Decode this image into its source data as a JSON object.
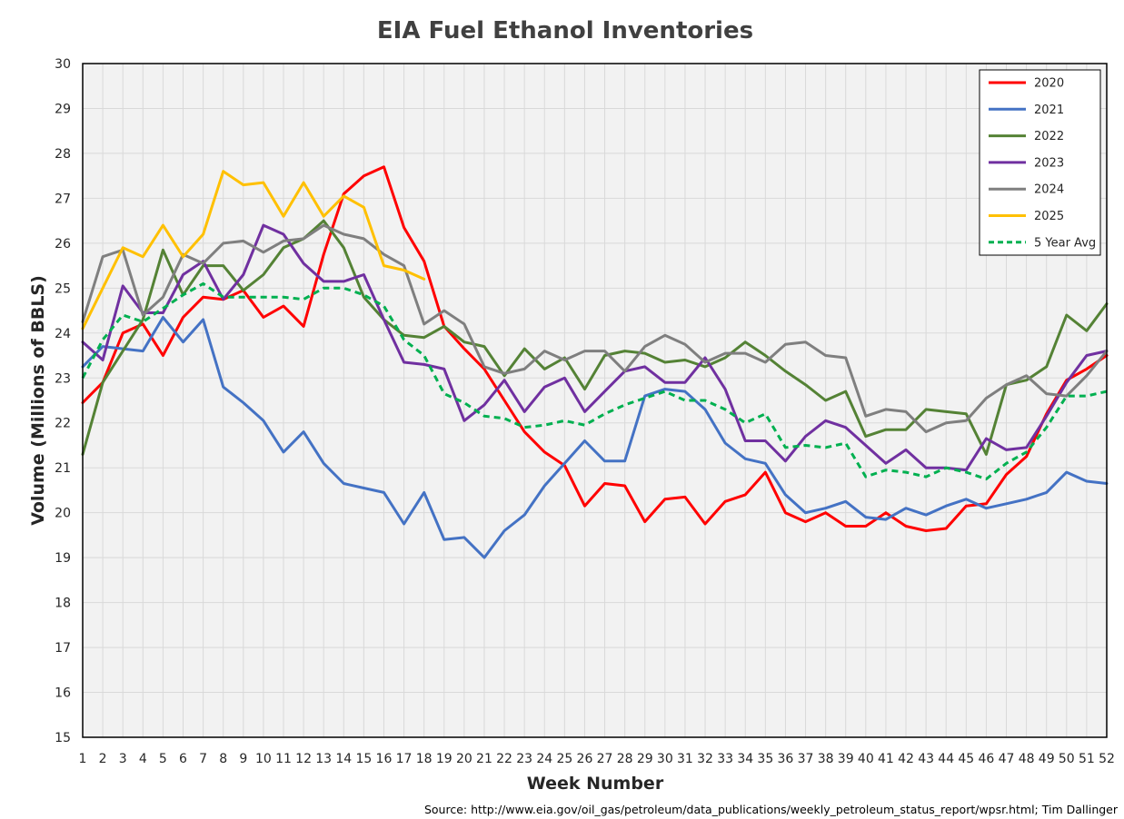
{
  "chart_data": {
    "type": "line",
    "title": "EIA Fuel Ethanol Inventories",
    "xlabel": "Week Number",
    "ylabel": "Volume (Millions of BBLS)",
    "source": "Source: http://www.eia.gov/oil_gas/petroleum/data_publications/weekly_petroleum_status_report/wpsr.html; Tim Dallinger",
    "xlim": [
      1,
      52
    ],
    "ylim": [
      15,
      30
    ],
    "x_ticks": [
      1,
      2,
      3,
      4,
      5,
      6,
      7,
      8,
      9,
      10,
      11,
      12,
      13,
      14,
      15,
      16,
      17,
      18,
      19,
      20,
      21,
      22,
      23,
      24,
      25,
      26,
      27,
      28,
      29,
      30,
      31,
      32,
      33,
      34,
      35,
      36,
      37,
      38,
      39,
      40,
      41,
      42,
      43,
      44,
      45,
      46,
      47,
      48,
      49,
      50,
      51,
      52
    ],
    "y_ticks": [
      15,
      16,
      17,
      18,
      19,
      20,
      21,
      22,
      23,
      24,
      25,
      26,
      27,
      28,
      29,
      30
    ],
    "grid": true,
    "legend_position": "top-right",
    "plot_background": "#f2f2f2",
    "series": [
      {
        "name": "2020",
        "color": "#ff0000",
        "dashed": false,
        "values": [
          22.45,
          22.9,
          24.0,
          24.2,
          23.5,
          24.35,
          24.8,
          24.75,
          24.95,
          24.35,
          24.6,
          24.15,
          25.75,
          27.1,
          27.5,
          27.7,
          26.35,
          25.6,
          24.15,
          23.65,
          23.2,
          22.5,
          21.8,
          21.35,
          21.05,
          20.15,
          20.65,
          20.6,
          19.8,
          20.3,
          20.35,
          19.75,
          20.25,
          20.4,
          20.9,
          20.0,
          19.8,
          20.0,
          19.7,
          19.7,
          20.0,
          19.7,
          19.6,
          19.65,
          20.15,
          20.2,
          20.85,
          21.25,
          22.2,
          22.95,
          23.2,
          23.5
        ]
      },
      {
        "name": "2021",
        "color": "#4472c4",
        "dashed": false,
        "values": [
          23.25,
          23.7,
          23.65,
          23.6,
          24.35,
          23.8,
          24.3,
          22.8,
          22.45,
          22.05,
          21.35,
          21.8,
          21.1,
          20.65,
          20.55,
          20.45,
          19.75,
          20.45,
          19.4,
          19.45,
          19.0,
          19.6,
          19.95,
          20.6,
          21.1,
          21.6,
          21.15,
          21.15,
          22.6,
          22.75,
          22.7,
          22.3,
          21.55,
          21.2,
          21.1,
          20.4,
          20.0,
          20.1,
          20.25,
          19.9,
          19.85,
          20.1,
          19.95,
          20.15,
          20.3,
          20.1,
          20.2,
          20.3,
          20.45,
          20.9,
          20.7,
          20.65
        ]
      },
      {
        "name": "2022",
        "color": "#548235",
        "dashed": false,
        "values": [
          21.3,
          22.9,
          23.6,
          24.3,
          25.85,
          24.85,
          25.5,
          25.5,
          24.95,
          25.3,
          25.9,
          26.1,
          26.5,
          25.9,
          24.8,
          24.3,
          23.95,
          23.9,
          24.15,
          23.8,
          23.7,
          23.05,
          23.65,
          23.2,
          23.45,
          22.75,
          23.5,
          23.6,
          23.55,
          23.35,
          23.4,
          23.25,
          23.45,
          23.8,
          23.5,
          23.15,
          22.85,
          22.5,
          22.7,
          21.7,
          21.85,
          21.85,
          22.3,
          22.25,
          22.2,
          21.3,
          22.85,
          22.95,
          23.25,
          24.4,
          24.05,
          24.65
        ]
      },
      {
        "name": "2023",
        "color": "#7030a0",
        "dashed": false,
        "values": [
          23.8,
          23.4,
          25.05,
          24.45,
          24.45,
          25.3,
          25.6,
          24.75,
          25.3,
          26.4,
          26.2,
          25.55,
          25.15,
          25.15,
          25.3,
          24.3,
          23.35,
          23.3,
          23.2,
          22.05,
          22.4,
          22.95,
          22.25,
          22.8,
          23.0,
          22.25,
          22.7,
          23.15,
          23.25,
          22.9,
          22.9,
          23.45,
          22.75,
          21.6,
          21.6,
          21.15,
          21.7,
          22.05,
          21.9,
          21.5,
          21.1,
          21.4,
          21.0,
          21.0,
          20.95,
          21.65,
          21.4,
          21.45,
          22.15,
          22.9,
          23.5,
          23.6
        ]
      },
      {
        "name": "2024",
        "color": "#7f7f7f",
        "dashed": false,
        "values": [
          24.25,
          25.7,
          25.85,
          24.4,
          24.8,
          25.75,
          25.55,
          26.0,
          26.05,
          25.8,
          26.05,
          26.1,
          26.4,
          26.2,
          26.1,
          25.75,
          25.5,
          24.2,
          24.5,
          24.2,
          23.25,
          23.1,
          23.2,
          23.6,
          23.4,
          23.6,
          23.6,
          23.15,
          23.7,
          23.95,
          23.75,
          23.35,
          23.55,
          23.55,
          23.35,
          23.75,
          23.8,
          23.5,
          23.45,
          22.15,
          22.3,
          22.25,
          21.8,
          22.0,
          22.05,
          22.55,
          22.85,
          23.05,
          22.65,
          22.6,
          23.05,
          23.6
        ]
      },
      {
        "name": "2025",
        "color": "#ffc000",
        "dashed": false,
        "values": [
          24.1,
          25.0,
          25.9,
          25.7,
          26.4,
          25.7,
          26.2,
          27.6,
          27.3,
          27.35,
          26.6,
          27.35,
          26.6,
          27.05,
          26.8,
          25.5,
          25.4,
          25.2
        ]
      },
      {
        "name": "5 Year Avg",
        "color": "#00b050",
        "dashed": true,
        "values": [
          23.0,
          23.85,
          24.4,
          24.25,
          24.55,
          24.85,
          25.1,
          24.8,
          24.8,
          24.8,
          24.8,
          24.75,
          25.0,
          25.0,
          24.85,
          24.6,
          23.85,
          23.5,
          22.65,
          22.45,
          22.15,
          22.1,
          21.9,
          21.95,
          22.05,
          21.95,
          22.2,
          22.4,
          22.55,
          22.7,
          22.5,
          22.5,
          22.3,
          22.0,
          22.2,
          21.45,
          21.5,
          21.45,
          21.55,
          20.8,
          20.95,
          20.9,
          20.8,
          21.0,
          20.9,
          20.75,
          21.1,
          21.35,
          21.9,
          22.6,
          22.6,
          22.7
        ]
      }
    ]
  }
}
